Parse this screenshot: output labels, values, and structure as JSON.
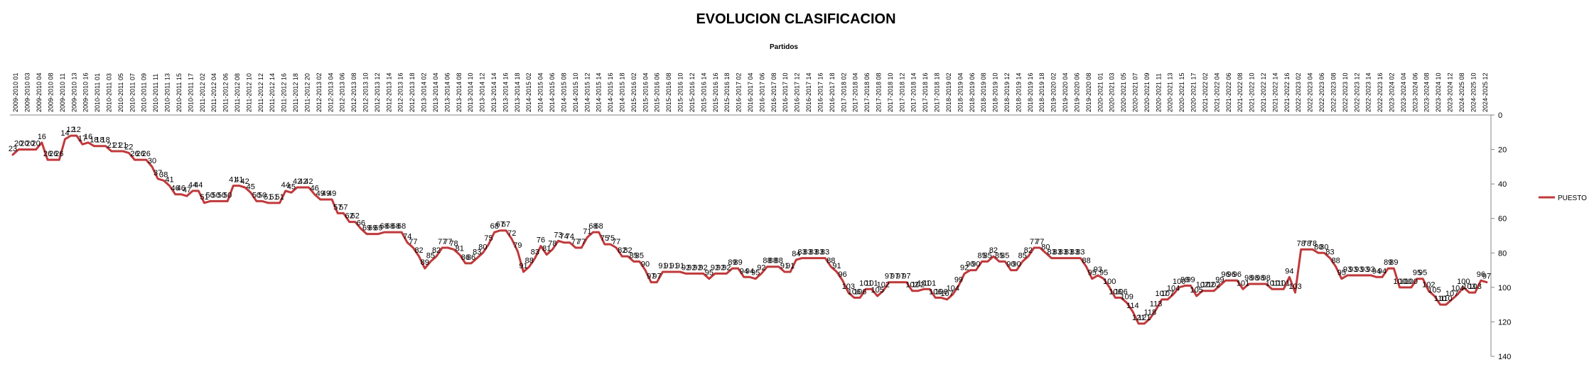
{
  "chart_data": {
    "type": "line",
    "title": "EVOLUCION CLASIFICACION",
    "xlabel": "Partidos",
    "ylabel": "",
    "y_reversed": true,
    "ylim": [
      0,
      140
    ],
    "yticks": [
      0,
      20,
      40,
      60,
      80,
      100,
      120,
      140
    ],
    "grid": false,
    "legend_position": "right",
    "line_color": "#C0393B",
    "x_tick_labels": [
      "2009-2010 01",
      "2009-2010 03",
      "2009-2010 04",
      "2009-2010 08",
      "2009-2010 11",
      "2009-2010 13",
      "2009-2010 16",
      "2010-2011 01",
      "2010-2011 03",
      "2010-2011 05",
      "2010-2011 07",
      "2010-2011 09",
      "2010-2011 11",
      "2010-2011 13",
      "2010-2011 15",
      "2010-2011 17",
      "2011-2012 02",
      "2011-2012 04",
      "2011-2012 06",
      "2011-2012 08",
      "2011-2012 10",
      "2011-2012 12",
      "2011-2012 14",
      "2011-2012 16",
      "2011-2012 18",
      "2011-2012 20",
      "2012-2013 02",
      "2012-2013 04",
      "2012-2013 06",
      "2012-2013 08",
      "2012-2013 10",
      "2012-2013 12",
      "2012-2013 14",
      "2012-2013 16",
      "2012-2013 18",
      "2013-2014 02",
      "2013-2014 04",
      "2013-2014 06",
      "2013-2014 08",
      "2013-2014 10",
      "2013-2014 12",
      "2013-2014 14",
      "2013-2014 16",
      "2013-2014 18",
      "2014-2015 02",
      "2014-2015 04",
      "2014-2015 06",
      "2014-2015 08",
      "2014-2015 10",
      "2014-2015 12",
      "2014-2015 14",
      "2014-2015 16",
      "2014-2015 18",
      "2015-2016 02",
      "2015-2016 04",
      "2015-2016 06",
      "2015-2016 08",
      "2015-2016 10",
      "2015-2016 12",
      "2015-2016 14",
      "2015-2016 16",
      "2015-2016 18",
      "2016-2017 02",
      "2016-2017 04",
      "2016-2017 06",
      "2016-2017 08",
      "2016-2017 10",
      "2016-2017 12",
      "2016-2017 14",
      "2016-2017 16",
      "2016-2017 18",
      "2017-2018 02",
      "2017-2018 04",
      "2017-2018 06",
      "2017-2018 08",
      "2017-2018 10",
      "2017-2018 12",
      "2017-2018 14",
      "2017-2018 16",
      "2017-2018 18",
      "2018-2019 02",
      "2018-2019 04",
      "2018-2019 06",
      "2018-2019 08",
      "2018-2019 10",
      "2018-2019 12",
      "2018-2019 14",
      "2018-2019 16",
      "2018-2019 18",
      "2019-2020 02",
      "2019-2020 04",
      "2019-2020 06",
      "2019-2020 08",
      "2020-2021 01",
      "2020-2021 03",
      "2020-2021 05",
      "2020-2021 07",
      "2020-2021 09",
      "2020-2021 11",
      "2020-2021 13",
      "2020-2021 15",
      "2020-2021 17",
      "2021-2022 02",
      "2021-2022 04",
      "2021-2022 06",
      "2021-2022 08",
      "2021-2022 10",
      "2021-2022 12",
      "2021-2022 14",
      "2021-2022 16",
      "2022-2023 02",
      "2022-2023 04",
      "2022-2023 06",
      "2022-2023 08",
      "2022-2023 10",
      "2022-2023 12",
      "2022-2023 14",
      "2022-2023 16",
      "2023-2024 02",
      "2023-2024 04",
      "2023-2024 06",
      "2023-2024 08",
      "2023-2024 10",
      "2023-2024 12",
      "2024-2025 08",
      "2024-2025 10",
      "2024-2025 12"
    ],
    "series": [
      {
        "name": "PUESTO",
        "values": [
          23,
          20,
          20,
          20,
          20,
          16,
          26,
          26,
          26,
          14,
          12,
          12,
          17,
          16,
          18,
          18,
          18,
          21,
          21,
          21,
          22,
          26,
          26,
          26,
          30,
          37,
          38,
          41,
          46,
          46,
          47,
          44,
          44,
          51,
          50,
          50,
          50,
          50,
          41,
          41,
          42,
          45,
          50,
          50,
          51,
          51,
          51,
          44,
          45,
          42,
          42,
          42,
          46,
          49,
          49,
          49,
          57,
          57,
          62,
          62,
          66,
          69,
          69,
          69,
          68,
          68,
          68,
          68,
          74,
          77,
          82,
          89,
          85,
          82,
          77,
          77,
          78,
          81,
          86,
          86,
          83,
          80,
          75,
          68,
          67,
          67,
          72,
          79,
          91,
          88,
          83,
          76,
          81,
          78,
          73,
          74,
          74,
          77,
          77,
          71,
          68,
          68,
          75,
          75,
          77,
          82,
          82,
          85,
          85,
          90,
          97,
          97,
          91,
          91,
          91,
          91,
          92,
          92,
          92,
          92,
          95,
          92,
          92,
          92,
          89,
          89,
          94,
          94,
          95,
          92,
          88,
          88,
          88,
          91,
          91,
          84,
          83,
          83,
          83,
          83,
          83,
          88,
          91,
          96,
          103,
          106,
          106,
          101,
          101,
          105,
          102,
          97,
          97,
          97,
          97,
          102,
          102,
          101,
          101,
          106,
          106,
          107,
          104,
          99,
          92,
          90,
          90,
          85,
          85,
          82,
          85,
          85,
          90,
          90,
          85,
          82,
          77,
          77,
          80,
          83,
          83,
          83,
          83,
          83,
          83,
          88,
          95,
          93,
          95,
          100,
          106,
          106,
          109,
          114,
          121,
          121,
          118,
          113,
          107,
          107,
          104,
          100,
          99,
          99,
          105,
          102,
          102,
          102,
          99,
          96,
          96,
          96,
          101,
          98,
          98,
          98,
          98,
          101,
          101,
          101,
          94,
          103,
          78,
          78,
          78,
          80,
          80,
          83,
          88,
          95,
          93,
          93,
          93,
          93,
          93,
          94,
          94,
          89,
          89,
          100,
          100,
          100,
          95,
          95,
          102,
          105,
          110,
          110,
          107,
          104,
          100,
          103,
          103,
          96,
          97
        ]
      }
    ],
    "data_labels": [
      "23",
      "20",
      "20",
      "20",
      "20",
      "16",
      "26",
      "26",
      "26",
      "14",
      "12",
      "12",
      "17",
      "16",
      "18",
      "18",
      "18",
      "21",
      "21",
      "21",
      "22",
      "26",
      "26",
      "26",
      "30",
      "37",
      "38",
      "41",
      "46",
      "46",
      "47",
      "44",
      "44",
      "51",
      "50",
      "50",
      "50",
      "50",
      "41",
      "41",
      "42",
      "45",
      "50",
      "50",
      "51",
      "51",
      "51",
      "44",
      "45",
      "42",
      "42",
      "42",
      "46",
      "49",
      "49",
      "49",
      "57",
      "57",
      "62",
      "62",
      "66",
      "69",
      "69",
      "69",
      "68",
      "68",
      "68",
      "68",
      "74",
      "77",
      "82",
      "89",
      "85",
      "82",
      "77",
      "77",
      "78",
      "81",
      "86",
      "86",
      "83",
      "80",
      "75",
      "68",
      "67",
      "67",
      "72",
      "79",
      "91",
      "88",
      "83",
      "76",
      "81",
      "78",
      "73",
      "74",
      "74",
      "77",
      "77",
      "71",
      "68",
      "68",
      "75",
      "75",
      "77",
      "82",
      "82",
      "85",
      "85",
      "90",
      "97",
      "97",
      "91",
      "91",
      "91",
      "91",
      "92",
      "92",
      "92",
      "92",
      "95",
      "92",
      "92",
      "92",
      "89",
      "89",
      "94",
      "94",
      "95",
      "92",
      "88",
      "88",
      "88",
      "91",
      "91",
      "84",
      "83",
      "83",
      "83",
      "83",
      "83",
      "88",
      "91",
      "96",
      "103",
      "106",
      "106",
      "101",
      "101",
      "105",
      "102",
      "97",
      "97",
      "97",
      "97",
      "102",
      "102",
      "101",
      "101",
      "106",
      "106",
      "107",
      "104",
      "99",
      "92",
      "90",
      "90",
      "85",
      "85",
      "82",
      "85",
      "85",
      "90",
      "90",
      "85",
      "82",
      "77",
      "77",
      "80",
      "83",
      "83",
      "83",
      "83",
      "83",
      "83",
      "88",
      "95",
      "93",
      "95",
      "100",
      "106",
      "106",
      "109",
      "114",
      "121",
      "121",
      "118",
      "113",
      "107",
      "107",
      "104",
      "100",
      "99",
      "99",
      "105",
      "102",
      "102",
      "102",
      "99",
      "96",
      "96",
      "96",
      "101",
      "98",
      "98",
      "98",
      "98",
      "101",
      "101",
      "101",
      "94",
      "103",
      "78",
      "78",
      "78",
      "80",
      "80",
      "83",
      "88",
      "95",
      "93",
      "93",
      "93",
      "93",
      "93",
      "94",
      "94",
      "89",
      "89",
      "100",
      "100",
      "100",
      "95",
      "95",
      "102",
      "105",
      "110",
      "110",
      "107",
      "104",
      "100",
      "103",
      "103",
      "96",
      "97"
    ]
  }
}
